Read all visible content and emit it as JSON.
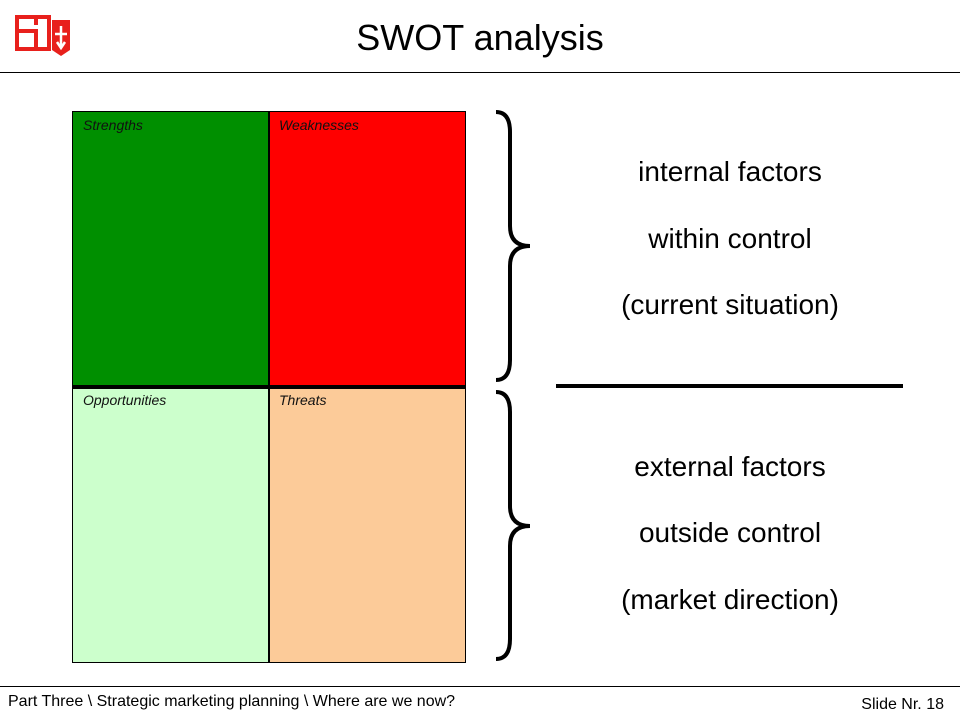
{
  "header": {
    "title": "SWOT analysis"
  },
  "colors": {
    "strengths": "#008f00",
    "weaknesses": "#ff0000",
    "opportunities": "#ccffcc",
    "threats": "#fccb99",
    "logo_red": "#e8201c"
  },
  "swot": {
    "strengths": "Strengths",
    "weaknesses": "Weaknesses",
    "opportunities": "Opportunities",
    "threats": "Threats"
  },
  "internal": {
    "line1": "internal factors",
    "line2": "within control",
    "line3": "(current situation)"
  },
  "external": {
    "line1": "external factors",
    "line2": "outside control",
    "line3": "(market direction)"
  },
  "footer": {
    "breadcrumb": "Part Three \\ Strategic marketing planning \\ Where are we now?",
    "slide": "Slide Nr. 18"
  }
}
